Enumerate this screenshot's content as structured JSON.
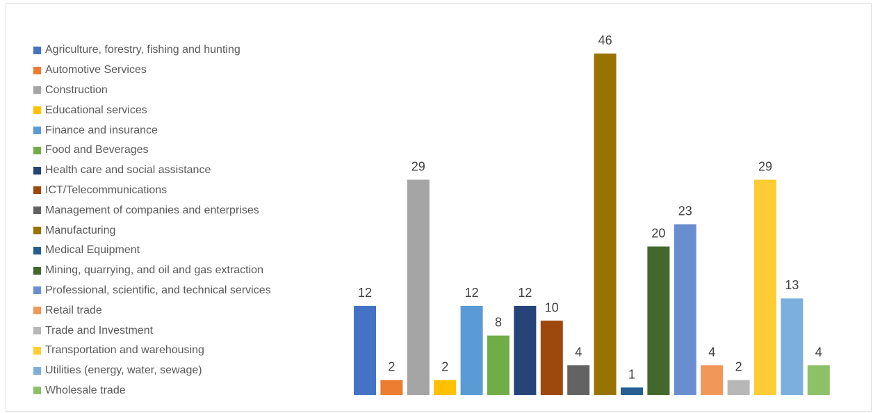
{
  "chart_data": {
    "type": "bar",
    "categories": [
      "Agriculture, forestry, fishing and hunting",
      "Automotive Services",
      "Construction",
      "Educational services",
      "Finance and insurance",
      "Food and Beverages",
      "Health care and social assistance",
      "ICT/Telecommunications",
      "Management of companies and enterprises",
      "Manufacturing",
      "Medical Equipment",
      "Mining, quarrying, and oil and gas extraction",
      "Professional, scientific, and technical services",
      "Retail trade",
      "Trade and Investment",
      "Transportation and warehousing",
      "Utilities (energy, water, sewage)",
      "Wholesale trade"
    ],
    "values": [
      12,
      2,
      29,
      2,
      12,
      8,
      12,
      10,
      4,
      46,
      1,
      20,
      23,
      4,
      2,
      29,
      13,
      4
    ],
    "colors": [
      "#4472c4",
      "#ed7d31",
      "#a5a5a5",
      "#ffc000",
      "#5b9bd5",
      "#70ad47",
      "#264478",
      "#9e480e",
      "#636363",
      "#997300",
      "#255e91",
      "#43682b",
      "#698ed0",
      "#f1975a",
      "#b7b7b7",
      "#ffcd33",
      "#7cafdd",
      "#8cc168"
    ],
    "data_labels": [
      "12",
      "2",
      "29",
      "2",
      "12",
      "8",
      "12",
      "10",
      "4",
      "46",
      "1",
      "20",
      "23",
      "4",
      "2",
      "29",
      "13",
      "4"
    ],
    "legend_position": "left",
    "ylim": [
      0,
      46
    ],
    "grid": false,
    "title": "",
    "xlabel": "",
    "ylabel": ""
  }
}
